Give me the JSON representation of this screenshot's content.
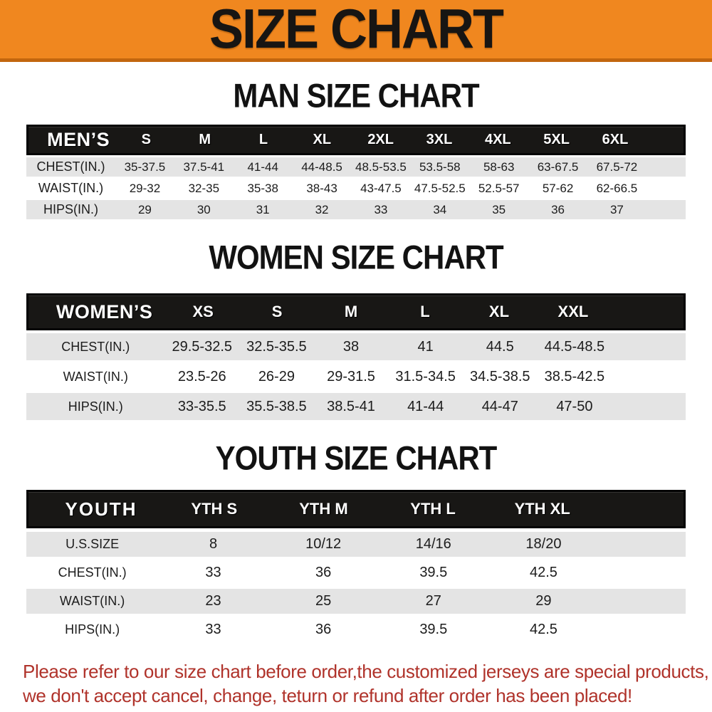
{
  "banner": {
    "title": "SIZE CHART"
  },
  "colors": {
    "banner_bg": "#F0871F",
    "banner_border": "#C2660E",
    "table_header_bg": "#181715",
    "row_shade": "#E4E4E4",
    "footer_red": "#B0332B"
  },
  "sections": {
    "men": {
      "title": "MAN SIZE CHART",
      "corner": "MEN’S",
      "columns": [
        "S",
        "M",
        "L",
        "XL",
        "2XL",
        "3XL",
        "4XL",
        "5XL",
        "6XL"
      ],
      "rows": [
        {
          "label": "CHEST(IN.)",
          "values": [
            "35-37.5",
            "37.5-41",
            "41-44",
            "44-48.5",
            "48.5-53.5",
            "53.5-58",
            "58-63",
            "63-67.5",
            "67.5-72"
          ]
        },
        {
          "label": "WAIST(IN.)",
          "values": [
            "29-32",
            "32-35",
            "35-38",
            "38-43",
            "43-47.5",
            "47.5-52.5",
            "52.5-57",
            "57-62",
            "62-66.5"
          ]
        },
        {
          "label": "HIPS(IN.)",
          "values": [
            "29",
            "30",
            "31",
            "32",
            "33",
            "34",
            "35",
            "36",
            "37"
          ]
        }
      ]
    },
    "women": {
      "title": "WOMEN SIZE CHART",
      "corner": "WOMEN’S",
      "columns": [
        "XS",
        "S",
        "M",
        "L",
        "XL",
        "XXL"
      ],
      "rows": [
        {
          "label": "CHEST(IN.)",
          "values": [
            "29.5-32.5",
            "32.5-35.5",
            "38",
            "41",
            "44.5",
            "44.5-48.5"
          ]
        },
        {
          "label": "WAIST(IN.)",
          "values": [
            "23.5-26",
            "26-29",
            "29-31.5",
            "31.5-34.5",
            "34.5-38.5",
            "38.5-42.5"
          ]
        },
        {
          "label": "HIPS(IN.)",
          "values": [
            "33-35.5",
            "35.5-38.5",
            "38.5-41",
            "41-44",
            "44-47",
            "47-50"
          ]
        }
      ]
    },
    "youth": {
      "title": "YOUTH SIZE CHART",
      "corner": "YOUTH",
      "columns": [
        "YTH S",
        "YTH M",
        "YTH L",
        "YTH XL"
      ],
      "rows": [
        {
          "label": "U.S.SIZE",
          "values": [
            "8",
            "10/12",
            "14/16",
            "18/20"
          ]
        },
        {
          "label": "CHEST(IN.)",
          "values": [
            "33",
            "36",
            "39.5",
            "42.5"
          ]
        },
        {
          "label": "WAIST(IN.)",
          "values": [
            "23",
            "25",
            "27",
            "29"
          ]
        },
        {
          "label": "HIPS(IN.)",
          "values": [
            "33",
            "36",
            "39.5",
            "42.5"
          ]
        }
      ]
    }
  },
  "footer": {
    "line1": "Please refer to our size chart before order,the customized jerseys are special products,",
    "line2": "we don't accept cancel, change, teturn or refund after order has been placed!"
  }
}
